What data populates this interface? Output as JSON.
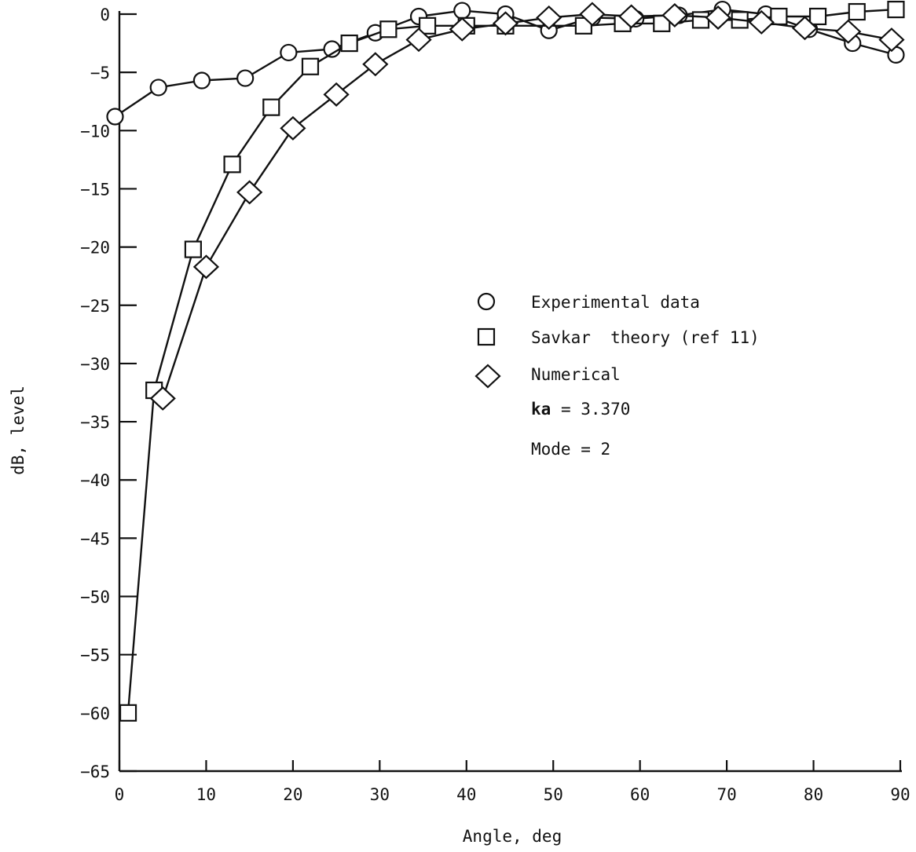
{
  "chart_data": {
    "type": "line",
    "xlabel": "Angle, deg",
    "ylabel": "dB, level",
    "xlim": [
      0,
      90
    ],
    "ylim": [
      -65,
      0
    ],
    "xticks": [
      0,
      10,
      20,
      30,
      40,
      50,
      60,
      70,
      80,
      90
    ],
    "yticks": [
      0,
      -5,
      -10,
      -15,
      -20,
      -25,
      -30,
      -35,
      -40,
      -45,
      -50,
      -55,
      -60,
      -65
    ],
    "grid": false,
    "legend_position": "center-right",
    "series": [
      {
        "name": "Experimental data",
        "marker": "circle",
        "x": [
          -0.5,
          4.5,
          9.5,
          14.5,
          19.5,
          24.5,
          29.5,
          34.5,
          39.5,
          44.5,
          49.5,
          54.5,
          59.5,
          64.5,
          69.5,
          74.5,
          79.5,
          84.5,
          89.5
        ],
        "y": [
          -8.8,
          -6.3,
          -5.7,
          -5.5,
          -3.3,
          -3.0,
          -1.6,
          -0.2,
          0.3,
          0.0,
          -1.4,
          -0.3,
          -0.4,
          -0.1,
          0.4,
          0.0,
          -1.3,
          -2.5,
          -3.5
        ]
      },
      {
        "name": "Savkar theory (ref 11)",
        "marker": "square",
        "x": [
          1.0,
          4.0,
          8.5,
          13.0,
          17.5,
          22.0,
          26.5,
          31.0,
          35.5,
          40.0,
          44.5,
          53.5,
          58.0,
          62.5,
          67.0,
          71.5,
          76.0,
          80.5,
          85.0,
          89.5
        ],
        "y": [
          -60.0,
          -32.3,
          -20.2,
          -12.9,
          -8.0,
          -4.5,
          -2.5,
          -1.3,
          -1.0,
          -1.0,
          -1.0,
          -1.0,
          -0.8,
          -0.8,
          -0.5,
          -0.5,
          -0.2,
          -0.2,
          0.2,
          0.4
        ]
      },
      {
        "name": "Numerical",
        "marker": "diamond",
        "x": [
          5.0,
          10.0,
          15.0,
          20.0,
          25.0,
          29.5,
          34.5,
          39.5,
          44.5,
          49.5,
          54.5,
          59.0,
          64.0,
          69.0,
          74.0,
          79.0,
          84.0,
          89.0
        ],
        "y": [
          -33.0,
          -21.7,
          -15.3,
          -9.8,
          -6.9,
          -4.3,
          -2.2,
          -1.3,
          -0.8,
          -0.3,
          0.0,
          -0.2,
          -0.1,
          -0.3,
          -0.7,
          -1.2,
          -1.5,
          -2.2
        ]
      }
    ]
  },
  "legend": {
    "entries": [
      "Experimental data",
      "Savkar  theory (ref 11)",
      "Numerical"
    ],
    "note_ka_label": "ka",
    "note_ka_value": " = 3.370",
    "note_mode": "Mode = 2"
  },
  "colors": {
    "ink": "#111111",
    "background": "#ffffff"
  }
}
